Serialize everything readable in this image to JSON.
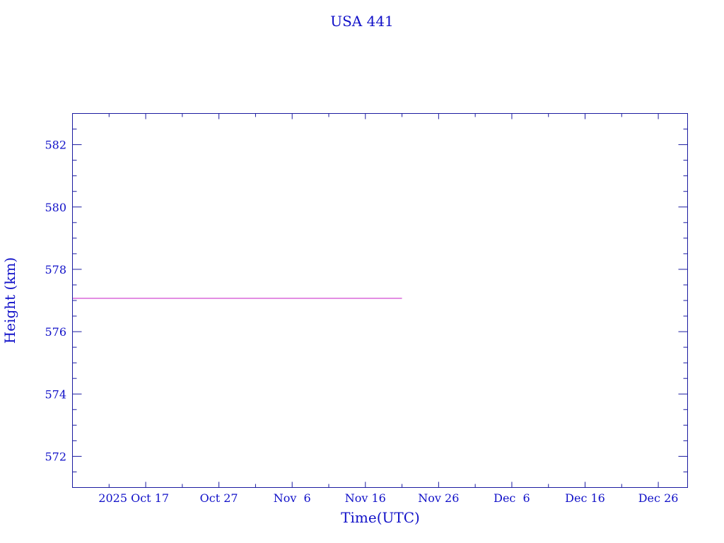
{
  "chart_data": {
    "type": "line",
    "title": "USA 441",
    "xlabel": "Time(UTC)",
    "ylabel": "Height (km)",
    "xlim": [
      "2025-10-07",
      "2025-12-30"
    ],
    "ylim": [
      571,
      583
    ],
    "x_major_ticks": [
      "2025-10-17",
      "2025-10-27",
      "2025-11-06",
      "2025-11-16",
      "2025-11-26",
      "2025-12-06",
      "2025-12-16",
      "2025-12-26"
    ],
    "x_tick_labels": [
      "2025 Oct 17",
      "Oct 27",
      "Nov  6",
      "Nov 16",
      "Nov 26",
      "Dec  6",
      "Dec 16",
      "Dec 26"
    ],
    "y_ticks": [
      572,
      574,
      576,
      578,
      580,
      582
    ],
    "y_tick_labels": [
      "572",
      "574",
      "576",
      "578",
      "580",
      "582"
    ],
    "grid": false,
    "series": [
      {
        "x": [
          "2025-10-07",
          "2025-11-21"
        ],
        "values": [
          577.07,
          577.07
        ],
        "color": "#cc33cc"
      }
    ],
    "colors": {
      "axis": "#1a1aa0",
      "text": "#1010c8"
    }
  }
}
